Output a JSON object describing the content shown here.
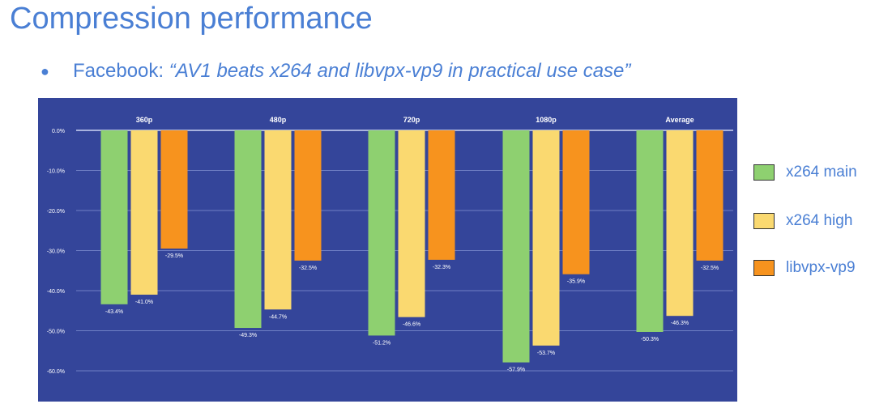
{
  "slide": {
    "title": "Compression performance",
    "bullet_source": "Facebook:",
    "bullet_quote": "“AV1 beats x264 and libvpx-vp9 in practical use case”"
  },
  "chart_data": {
    "type": "bar",
    "categories": [
      "360p",
      "480p",
      "720p",
      "1080p",
      "Average"
    ],
    "series": [
      {
        "name": "x264 main",
        "color": "#8ed070",
        "values": [
          -43.4,
          -49.3,
          -51.2,
          -57.9,
          -50.3
        ],
        "labels": [
          "-43.4%",
          "-49.3%",
          "-51.2%",
          "-57.9%",
          "-50.3%"
        ]
      },
      {
        "name": "x264 high",
        "color": "#fad970",
        "values": [
          -41.0,
          -44.7,
          -46.6,
          -53.7,
          -46.3
        ],
        "labels": [
          "-41.0%",
          "-44.7%",
          "-46.6%",
          "-53.7%",
          "-46.3%"
        ]
      },
      {
        "name": "libvpx-vp9",
        "color": "#f7931e",
        "values": [
          -29.5,
          -32.5,
          -32.3,
          -35.9,
          -32.5
        ],
        "labels": [
          "-29.5%",
          "-32.5%",
          "-32.3%",
          "-35.9%",
          "-32.5%"
        ]
      }
    ],
    "yticks": [
      0,
      -10,
      -20,
      -30,
      -40,
      -50,
      -60
    ],
    "ytick_labels": [
      "0.0%",
      "-10.0%",
      "-20.0%",
      "-30.0%",
      "-40.0%",
      "-50.0%",
      "-60.0%"
    ],
    "ylim": [
      -60,
      0
    ],
    "grid": true,
    "legend_position": "right",
    "background_color": "#34459a",
    "gridline_color": "#6f7fc4",
    "zero_line_color": "#cfd6f5",
    "text_color": "#ffffff"
  }
}
